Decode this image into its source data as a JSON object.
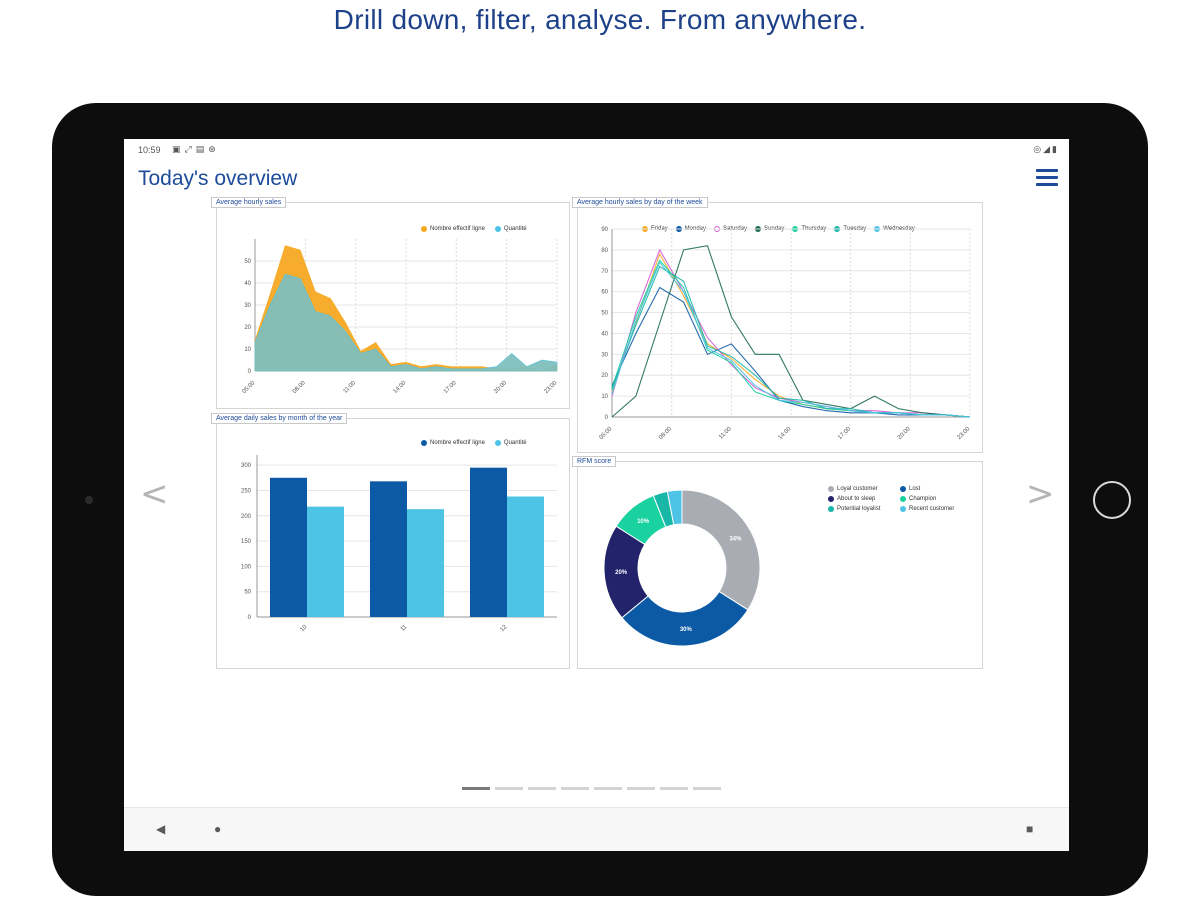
{
  "headline": "Drill down, filter, analyse. From anywhere.",
  "status_bar": {
    "time": "10:59",
    "icons": [
      "notification-icon",
      "cast-icon",
      "sd-card-icon",
      "vpn-icon"
    ],
    "right_icons": [
      "wifi-icon",
      "signal-icon",
      "battery-icon"
    ]
  },
  "app": {
    "title": "Today's overview"
  },
  "colors": {
    "brand_blue": "#1d4b9b",
    "orange": "#f7a823",
    "teal": "#7fbfbd",
    "dark_blue": "#0c5aa6",
    "light_blue": "#4dc3e6",
    "grey": "#a9adb3",
    "navy": "#23236b",
    "green": "#1ad1a0"
  },
  "pager": {
    "count": 8,
    "active": 0
  },
  "charts": {
    "hourly": {
      "title": "Average hourly sales",
      "legend": [
        "Nombre effectif ligne",
        "Quantité"
      ],
      "chart_data": {
        "type": "area",
        "title": "Average hourly sales",
        "x_labels": [
          "05:00",
          "08:00",
          "11:00",
          "14:00",
          "17:00",
          "20:00",
          "23:00"
        ],
        "y_ticks": [
          0,
          10,
          20,
          30,
          40,
          50
        ],
        "ylim": [
          0,
          60
        ],
        "series": [
          {
            "name": "Nombre effectif ligne",
            "values": [
              14,
              35,
              57,
              55,
              36,
              33,
              22,
              9,
              13,
              3,
              4,
              2,
              3,
              2,
              2,
              2,
              1,
              1,
              2,
              0,
              3
            ]
          },
          {
            "name": "Quantité",
            "values": [
              13,
              30,
              44,
              42,
              27,
              25,
              18,
              8,
              10,
              2,
              3,
              1,
              2,
              1,
              1,
              1,
              2,
              8,
              2,
              5,
              4
            ]
          }
        ]
      }
    },
    "weekday": {
      "title": "Average hourly sales by day of the week",
      "legend": [
        "Friday",
        "Monday",
        "Saturday",
        "Sunday",
        "Thursday",
        "Tuesday",
        "Wednesday"
      ],
      "chart_data": {
        "type": "line",
        "title": "Average hourly sales by day of the week",
        "x_labels": [
          "05:00",
          "08:00",
          "11:00",
          "14:00",
          "17:00",
          "20:00",
          "23:00"
        ],
        "y_ticks": [
          0,
          10,
          20,
          30,
          40,
          50,
          60,
          70,
          80,
          90
        ],
        "ylim": [
          0,
          90
        ],
        "series": [
          {
            "name": "Friday",
            "values": [
              12,
              45,
              78,
              58,
              35,
              28,
              18,
              10,
              6,
              4,
              3,
              2,
              2,
              1,
              1,
              0
            ]
          },
          {
            "name": "Monday",
            "values": [
              15,
              40,
              62,
              55,
              30,
              35,
              22,
              8,
              5,
              3,
              2,
              2,
              1,
              1,
              1,
              0
            ]
          },
          {
            "name": "Saturday",
            "values": [
              10,
              50,
              80,
              60,
              38,
              25,
              14,
              9,
              7,
              5,
              3,
              3,
              2,
              2,
              1,
              0
            ]
          },
          {
            "name": "Sunday",
            "values": [
              0,
              10,
              45,
              80,
              82,
              48,
              30,
              30,
              8,
              6,
              4,
              10,
              4,
              2,
              1,
              0
            ]
          },
          {
            "name": "Thursday",
            "values": [
              14,
              48,
              75,
              62,
              32,
              26,
              12,
              8,
              6,
              4,
              3,
              2,
              2,
              1,
              1,
              0
            ]
          },
          {
            "name": "Tuesday",
            "values": [
              13,
              44,
              72,
              65,
              34,
              29,
              20,
              9,
              8,
              4,
              4,
              2,
              2,
              1,
              1,
              0
            ]
          },
          {
            "name": "Wednesday",
            "values": [
              11,
              46,
              74,
              60,
              33,
              27,
              15,
              8,
              7,
              5,
              3,
              2,
              2,
              1,
              1,
              0
            ]
          }
        ]
      }
    },
    "monthly": {
      "title": "Average daily sales by month of the year",
      "legend": [
        "Nombre effectif ligne",
        "Quantité"
      ],
      "chart_data": {
        "type": "bar",
        "title": "Average daily sales by month of the year",
        "categories": [
          "10",
          "11",
          "12"
        ],
        "y_ticks": [
          0,
          50,
          100,
          150,
          200,
          250,
          300
        ],
        "ylim": [
          0,
          320
        ],
        "series": [
          {
            "name": "Nombre effectif ligne",
            "values": [
              275,
              268,
              295
            ]
          },
          {
            "name": "Quantité",
            "values": [
              218,
              213,
              238
            ]
          }
        ]
      }
    },
    "rfm": {
      "title": "RFM score",
      "legend": [
        "Loyal customer",
        "Lost",
        "About to sleep",
        "Champion",
        "Potential loyalist",
        "Recent customer"
      ],
      "chart_data": {
        "type": "pie",
        "title": "RFM score",
        "labels": [
          "Loyal customer",
          "Lost",
          "About to sleep",
          "Champion",
          "Potential loyalist",
          "Recent customer"
        ],
        "values": [
          34,
          30,
          20,
          10,
          3,
          3
        ],
        "value_labels": [
          "34%",
          "30%",
          "20%",
          "10%",
          "",
          ""
        ]
      }
    }
  }
}
